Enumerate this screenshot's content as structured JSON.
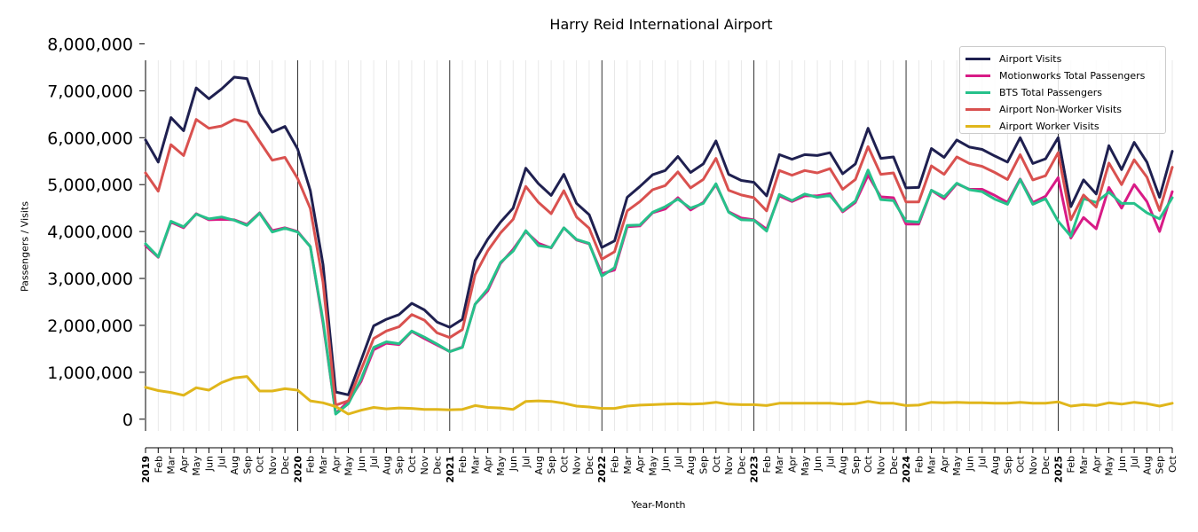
{
  "chart_data": {
    "type": "line",
    "title": "Harry Reid International Airport",
    "xlabel": "Year-Month",
    "ylabel": "Passengers / Visits",
    "ylim": [
      -250000,
      7650000
    ],
    "y_ticks": [
      0,
      1000000,
      2000000,
      3000000,
      4000000,
      5000000,
      6000000,
      7000000,
      8000000
    ],
    "y_tick_labels": [
      "0",
      "1,000,000",
      "2,000,000",
      "3,000,000",
      "4,000,000",
      "5,000,000",
      "6,000,000",
      "7,000,000",
      "8,000,000"
    ],
    "x_start": "2019-01",
    "x_end": "2025-10",
    "year_labels": [
      "2019",
      "2020",
      "2021",
      "2022",
      "2023",
      "2024",
      "2025"
    ],
    "month_labels": [
      "Feb",
      "Mar",
      "Apr",
      "May",
      "Jun",
      "Jul",
      "Aug",
      "Sep",
      "Oct",
      "Nov",
      "Dec"
    ],
    "grid": "vertical month lines; solid lines at year starts",
    "legend_position": "top-right",
    "series": [
      {
        "name": "Airport Visits",
        "color": "#1f2050",
        "values": [
          5950000,
          5480000,
          6430000,
          6150000,
          7060000,
          6830000,
          7040000,
          7290000,
          7260000,
          6520000,
          6120000,
          6240000,
          5760000,
          4870000,
          3300000,
          580000,
          520000,
          1250000,
          1990000,
          2130000,
          2230000,
          2470000,
          2330000,
          2070000,
          1960000,
          2130000,
          3380000,
          3840000,
          4200000,
          4500000,
          5350000,
          5020000,
          4770000,
          5220000,
          4600000,
          4360000,
          3660000,
          3800000,
          4730000,
          4960000,
          5210000,
          5300000,
          5600000,
          5260000,
          5440000,
          5930000,
          5220000,
          5090000,
          5050000,
          4760000,
          5640000,
          5540000,
          5640000,
          5620000,
          5680000,
          5230000,
          5440000,
          6200000,
          5560000,
          5590000,
          4930000,
          4940000,
          5770000,
          5580000,
          5950000,
          5800000,
          5750000,
          5610000,
          5480000,
          6000000,
          5450000,
          5550000,
          6000000,
          4530000,
          5100000,
          4800000,
          5830000,
          5320000,
          5900000,
          5480000,
          4730000,
          5710000
        ]
      },
      {
        "name": "Motionworks Total Passengers",
        "color": "#d81b86",
        "values": [
          3700000,
          3450000,
          4200000,
          4080000,
          4380000,
          4250000,
          4260000,
          4250000,
          4150000,
          4400000,
          4020000,
          4080000,
          4000000,
          3680000,
          2050000,
          120000,
          380000,
          800000,
          1480000,
          1620000,
          1590000,
          1870000,
          1720000,
          1580000,
          1440000,
          1540000,
          2450000,
          2740000,
          3320000,
          3620000,
          4000000,
          3750000,
          3650000,
          4080000,
          3820000,
          3740000,
          3100000,
          3180000,
          4100000,
          4120000,
          4400000,
          4480000,
          4720000,
          4460000,
          4620000,
          5000000,
          4420000,
          4290000,
          4250000,
          4050000,
          4760000,
          4640000,
          4760000,
          4760000,
          4810000,
          4420000,
          4620000,
          5200000,
          4740000,
          4720000,
          4160000,
          4160000,
          4880000,
          4700000,
          5020000,
          4900000,
          4900000,
          4770000,
          4620000,
          5120000,
          4620000,
          4750000,
          5150000,
          3860000,
          4300000,
          4060000,
          4940000,
          4500000,
          5000000,
          4640000,
          4000000,
          4850000
        ]
      },
      {
        "name": "BTS Total Passengers",
        "color": "#26c18a",
        "values": [
          3740000,
          3460000,
          4220000,
          4100000,
          4370000,
          4270000,
          4310000,
          4240000,
          4130000,
          4390000,
          3990000,
          4070000,
          3990000,
          3680000,
          2100000,
          110000,
          330000,
          850000,
          1530000,
          1650000,
          1610000,
          1880000,
          1750000,
          1600000,
          1440000,
          1530000,
          2450000,
          2780000,
          3340000,
          3580000,
          4020000,
          3700000,
          3660000,
          4080000,
          3830000,
          3750000,
          3050000,
          3230000,
          4130000,
          4140000,
          4410000,
          4530000,
          4690000,
          4500000,
          4600000,
          5020000,
          4410000,
          4250000,
          4240000,
          4010000,
          4790000,
          4660000,
          4800000,
          4730000,
          4770000,
          4440000,
          4650000,
          5310000,
          4680000,
          4660000,
          4220000,
          4200000,
          4880000,
          4740000,
          5030000,
          4890000,
          4850000,
          4690000,
          4580000,
          5110000,
          4580000,
          4700000,
          4220000,
          3900000,
          4700000,
          4620000,
          4840000,
          4600000,
          4600000,
          4400000,
          4270000,
          4720000
        ]
      },
      {
        "name": "Airport Non-Worker Visits",
        "color": "#d9514f",
        "values": [
          5250000,
          4860000,
          5850000,
          5620000,
          6390000,
          6200000,
          6250000,
          6390000,
          6330000,
          5920000,
          5520000,
          5580000,
          5130000,
          4490000,
          2920000,
          300000,
          390000,
          1050000,
          1720000,
          1880000,
          1970000,
          2230000,
          2110000,
          1840000,
          1740000,
          1910000,
          3080000,
          3590000,
          3970000,
          4260000,
          4960000,
          4620000,
          4380000,
          4870000,
          4310000,
          4070000,
          3410000,
          3570000,
          4440000,
          4640000,
          4890000,
          4980000,
          5270000,
          4930000,
          5110000,
          5560000,
          4880000,
          4780000,
          4720000,
          4440000,
          5300000,
          5200000,
          5300000,
          5250000,
          5340000,
          4900000,
          5110000,
          5810000,
          5220000,
          5250000,
          4630000,
          4630000,
          5400000,
          5220000,
          5590000,
          5450000,
          5390000,
          5260000,
          5110000,
          5640000,
          5100000,
          5190000,
          5680000,
          4250000,
          4780000,
          4520000,
          5460000,
          5000000,
          5530000,
          5160000,
          4450000,
          5370000
        ]
      },
      {
        "name": "Airport Worker Visits",
        "color": "#e0b61b",
        "values": [
          680000,
          610000,
          570000,
          510000,
          670000,
          620000,
          780000,
          880000,
          910000,
          600000,
          600000,
          650000,
          620000,
          390000,
          350000,
          270000,
          110000,
          190000,
          250000,
          220000,
          240000,
          230000,
          210000,
          210000,
          200000,
          210000,
          290000,
          250000,
          240000,
          210000,
          380000,
          390000,
          380000,
          340000,
          280000,
          260000,
          230000,
          230000,
          280000,
          300000,
          310000,
          320000,
          330000,
          320000,
          330000,
          360000,
          320000,
          310000,
          310000,
          290000,
          340000,
          340000,
          340000,
          340000,
          340000,
          320000,
          330000,
          380000,
          340000,
          340000,
          290000,
          300000,
          360000,
          350000,
          360000,
          350000,
          350000,
          340000,
          340000,
          360000,
          340000,
          340000,
          370000,
          280000,
          310000,
          290000,
          350000,
          320000,
          360000,
          330000,
          280000,
          340000
        ]
      }
    ]
  }
}
